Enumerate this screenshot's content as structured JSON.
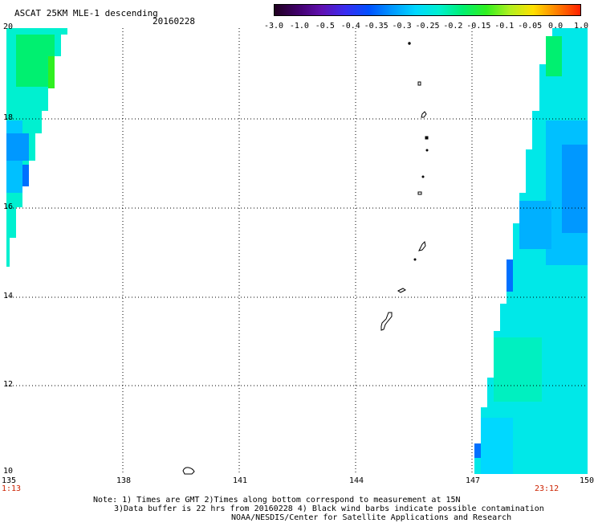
{
  "header": {
    "title": "ASCAT 25KM MLE-1 descending",
    "date": "20160228"
  },
  "colorbar": {
    "ticks": [
      "-3.0",
      "-1.0",
      "-0.5",
      "-0.4",
      "-0.35",
      "-0.3",
      "-0.25",
      "-0.2",
      "-0.15",
      "-0.1",
      "-0.05",
      "0.0",
      "1.0"
    ],
    "colors": [
      "#200020",
      "#40006a",
      "#6010b0",
      "#3a2cf0",
      "#0050ff",
      "#0098ff",
      "#00d8ff",
      "#00f0d0",
      "#00f070",
      "#30f020",
      "#b0f020",
      "#ffe000",
      "#ff8000",
      "#ff2000"
    ]
  },
  "axes": {
    "x_ticks": [
      "135",
      "138",
      "141",
      "144",
      "147",
      "150"
    ],
    "y_ticks": [
      "20",
      "18",
      "16",
      "14",
      "12",
      "10"
    ]
  },
  "times": {
    "left": "1:13",
    "right": "23:12"
  },
  "notes": {
    "line1": "Note: 1) Times are GMT 2)Times along bottom correspond to measurement at 15N",
    "line2": "3)Data buffer is 22 hrs from 20160228 4) Black wind barbs indicate possible contamination",
    "line3": "NOAA/NESDIS/Center for Satellite Applications and Research"
  }
}
